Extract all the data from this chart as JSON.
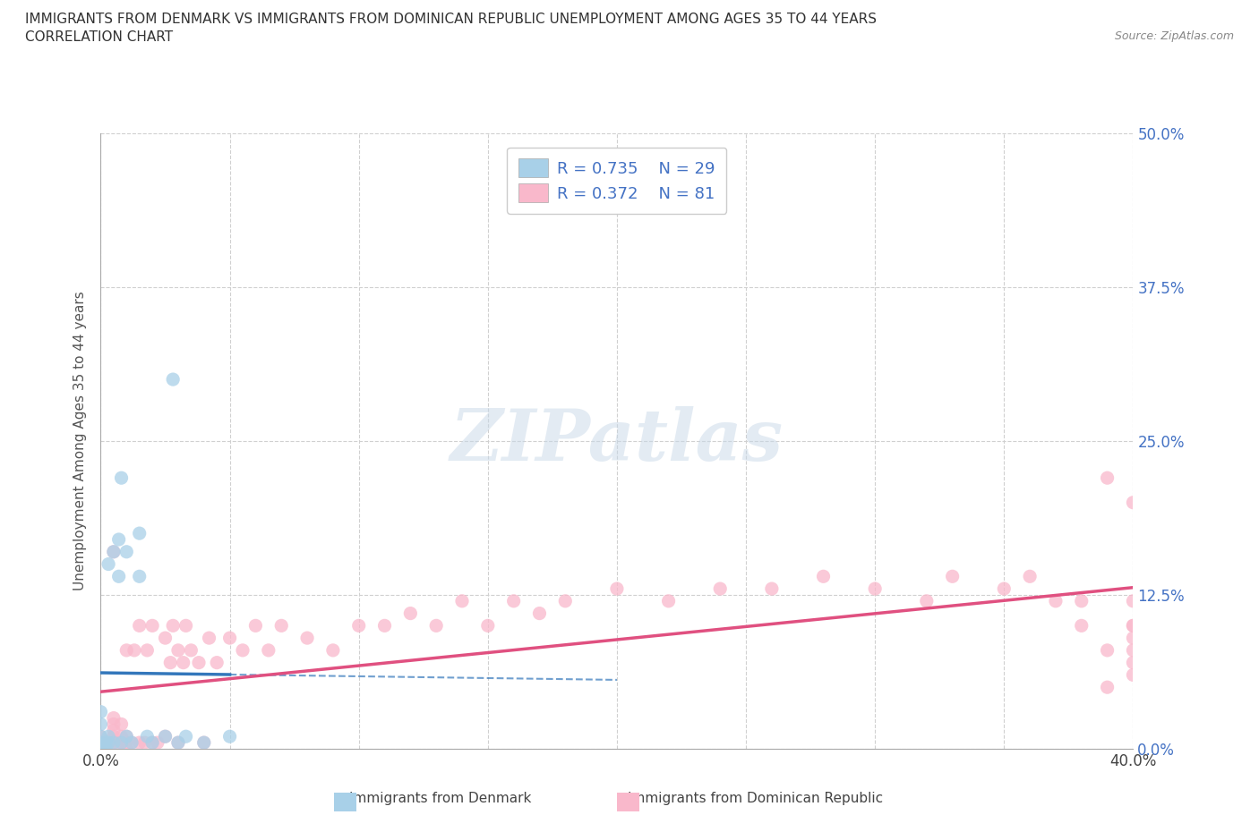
{
  "title_line1": "IMMIGRANTS FROM DENMARK VS IMMIGRANTS FROM DOMINICAN REPUBLIC UNEMPLOYMENT AMONG AGES 35 TO 44 YEARS",
  "title_line2": "CORRELATION CHART",
  "source_text": "Source: ZipAtlas.com",
  "ylabel": "Unemployment Among Ages 35 to 44 years",
  "xlim": [
    0.0,
    0.4
  ],
  "ylim": [
    0.0,
    0.5
  ],
  "ytick_labels": [
    "0.0%",
    "12.5%",
    "25.0%",
    "37.5%",
    "50.0%"
  ],
  "ytick_values": [
    0.0,
    0.125,
    0.25,
    0.375,
    0.5
  ],
  "xtick_values": [
    0.0,
    0.05,
    0.1,
    0.15,
    0.2,
    0.25,
    0.3,
    0.35,
    0.4
  ],
  "denmark_color": "#a8d0e8",
  "dominican_color": "#f9b8cb",
  "denmark_line_color": "#3377bb",
  "dominican_line_color": "#e05080",
  "denmark_R": 0.735,
  "denmark_N": 29,
  "dominican_R": 0.372,
  "dominican_N": 81,
  "watermark_text": "ZIPatlas",
  "legend_label_dk": "Immigrants from Denmark",
  "legend_label_dr": "Immigrants from Dominican Republic",
  "background_color": "#ffffff",
  "denmark_x": [
    0.0,
    0.0,
    0.0,
    0.0,
    0.0,
    0.002,
    0.002,
    0.003,
    0.003,
    0.003,
    0.005,
    0.005,
    0.007,
    0.007,
    0.008,
    0.008,
    0.01,
    0.01,
    0.012,
    0.015,
    0.015,
    0.018,
    0.02,
    0.025,
    0.028,
    0.03,
    0.033,
    0.04,
    0.05
  ],
  "denmark_y": [
    0.0,
    0.005,
    0.01,
    0.02,
    0.03,
    0.0,
    0.005,
    0.005,
    0.01,
    0.15,
    0.005,
    0.16,
    0.14,
    0.17,
    0.005,
    0.22,
    0.01,
    0.16,
    0.005,
    0.14,
    0.175,
    0.01,
    0.005,
    0.01,
    0.3,
    0.005,
    0.01,
    0.005,
    0.01
  ],
  "dominican_x": [
    0.0,
    0.0,
    0.0,
    0.003,
    0.003,
    0.005,
    0.005,
    0.005,
    0.005,
    0.005,
    0.005,
    0.007,
    0.008,
    0.008,
    0.008,
    0.01,
    0.01,
    0.01,
    0.01,
    0.012,
    0.013,
    0.015,
    0.015,
    0.017,
    0.018,
    0.02,
    0.02,
    0.022,
    0.025,
    0.025,
    0.027,
    0.028,
    0.03,
    0.03,
    0.032,
    0.033,
    0.035,
    0.038,
    0.04,
    0.042,
    0.045,
    0.05,
    0.055,
    0.06,
    0.065,
    0.07,
    0.08,
    0.09,
    0.1,
    0.11,
    0.12,
    0.13,
    0.14,
    0.15,
    0.16,
    0.17,
    0.18,
    0.2,
    0.22,
    0.24,
    0.26,
    0.28,
    0.3,
    0.32,
    0.33,
    0.35,
    0.36,
    0.37,
    0.38,
    0.38,
    0.39,
    0.39,
    0.39,
    0.4,
    0.4,
    0.4,
    0.4,
    0.4,
    0.4,
    0.4,
    0.4
  ],
  "dominican_y": [
    0.0,
    0.005,
    0.01,
    0.0,
    0.005,
    0.005,
    0.01,
    0.015,
    0.02,
    0.025,
    0.16,
    0.005,
    0.005,
    0.01,
    0.02,
    0.0,
    0.005,
    0.01,
    0.08,
    0.005,
    0.08,
    0.005,
    0.1,
    0.005,
    0.08,
    0.005,
    0.1,
    0.005,
    0.01,
    0.09,
    0.07,
    0.1,
    0.005,
    0.08,
    0.07,
    0.1,
    0.08,
    0.07,
    0.005,
    0.09,
    0.07,
    0.09,
    0.08,
    0.1,
    0.08,
    0.1,
    0.09,
    0.08,
    0.1,
    0.1,
    0.11,
    0.1,
    0.12,
    0.1,
    0.12,
    0.11,
    0.12,
    0.13,
    0.12,
    0.13,
    0.13,
    0.14,
    0.13,
    0.12,
    0.14,
    0.13,
    0.14,
    0.12,
    0.1,
    0.12,
    0.05,
    0.08,
    0.22,
    0.06,
    0.07,
    0.08,
    0.09,
    0.1,
    0.1,
    0.12,
    0.2
  ]
}
